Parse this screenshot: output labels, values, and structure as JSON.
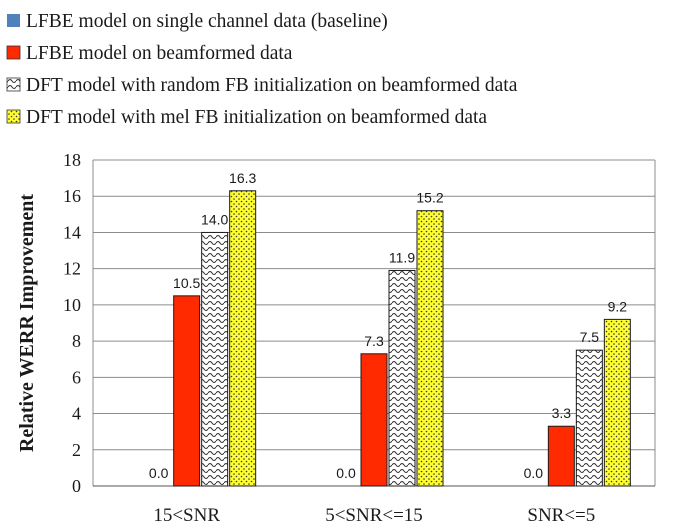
{
  "chart_data": {
    "type": "bar",
    "categories": [
      "15<SNR",
      "5<SNR<=15",
      "SNR<=5"
    ],
    "series": [
      {
        "name": "LFBE model on single channel data (baseline)",
        "values": [
          0.0,
          0.0,
          0.0
        ],
        "labels": [
          "0.0",
          "0.0",
          "0.0"
        ],
        "color": "#4f81bd",
        "pattern": "solid"
      },
      {
        "name": "LFBE model on beamformed data",
        "values": [
          10.5,
          7.3,
          3.3
        ],
        "labels": [
          "10.5",
          "7.3",
          "3.3"
        ],
        "color": "#ff2a00",
        "pattern": "solid"
      },
      {
        "name": "DFT model with random FB initialization on beamformed data",
        "values": [
          14.0,
          11.9,
          7.5
        ],
        "labels": [
          "14.0",
          "11.9",
          "7.5"
        ],
        "color": "#ffffff",
        "pattern": "wave"
      },
      {
        "name": "DFT model with mel FB initialization on beamformed data",
        "values": [
          16.3,
          15.2,
          9.2
        ],
        "labels": [
          "16.3",
          "15.2",
          "9.2"
        ],
        "color": "#ffff33",
        "pattern": "dots"
      }
    ],
    "ylabel": "Relative WERR  Improvement",
    "xlabel": "",
    "ylim": [
      0,
      18
    ],
    "yticks": [
      0,
      2,
      4,
      6,
      8,
      10,
      12,
      14,
      16,
      18
    ],
    "grid": true,
    "legend": "top"
  }
}
